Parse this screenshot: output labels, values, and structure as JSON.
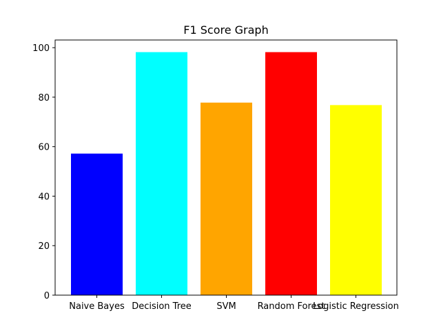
{
  "chart_data": {
    "type": "bar",
    "title": "F1 Score Graph",
    "xlabel": "",
    "ylabel": "",
    "categories": [
      "Naive Bayes",
      "Decision Tree",
      "SVM",
      "Random Forest",
      "Logistic Regression"
    ],
    "values": [
      57.2,
      98.2,
      77.8,
      98.2,
      76.8
    ],
    "colors": [
      "#0000ff",
      "#00ffff",
      "#ffa500",
      "#ff0000",
      "#ffff00"
    ],
    "ylim": [
      0,
      103.1
    ],
    "yticks": [
      0,
      20,
      40,
      60,
      80,
      100
    ],
    "grid": false,
    "legend": "none"
  }
}
